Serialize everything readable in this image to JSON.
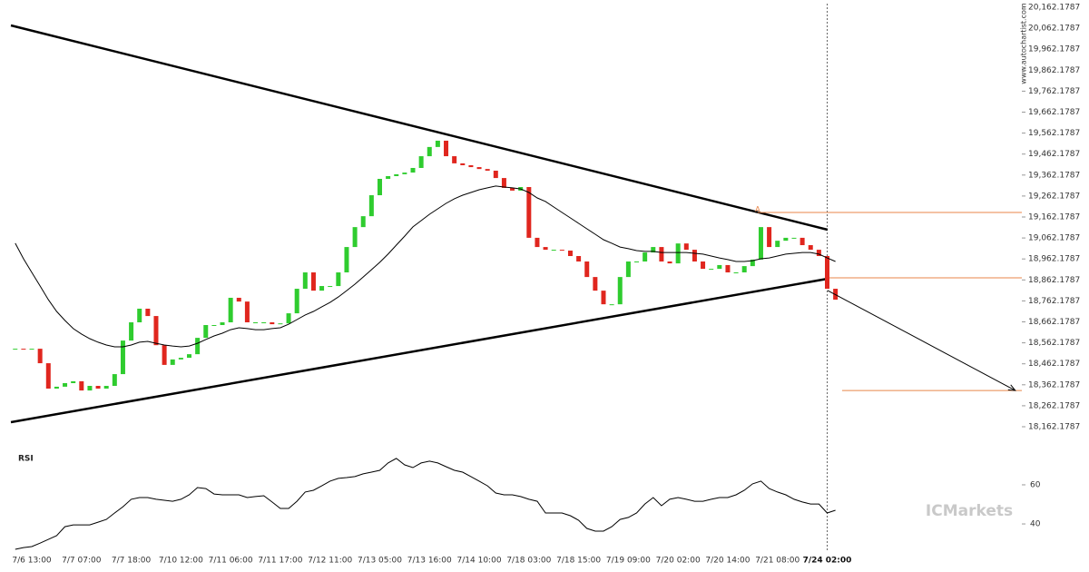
{
  "chart_data": {
    "type": "candlestick",
    "categories": [
      null,
      null,
      "7/6 13:00",
      null,
      null,
      null,
      null,
      null,
      "7/7 07:00",
      null,
      null,
      null,
      null,
      null,
      "7/7 18:00",
      null,
      null,
      null,
      null,
      null,
      "7/10 12:00",
      null,
      null,
      null,
      null,
      null,
      "7/11 06:00",
      null,
      null,
      null,
      null,
      null,
      "7/11 17:00",
      null,
      null,
      null,
      null,
      null,
      "7/12 11:00",
      null,
      null,
      null,
      null,
      null,
      "7/13 05:00",
      null,
      null,
      null,
      null,
      null,
      "7/13 16:00",
      null,
      null,
      null,
      null,
      null,
      "7/14 10:00",
      null,
      null,
      null,
      null,
      null,
      "7/18 03:00",
      null,
      null,
      null,
      null,
      null,
      "7/18 15:00",
      null,
      null,
      null,
      null,
      null,
      "7/19 09:00",
      null,
      null,
      null,
      null,
      null,
      "7/20 02:00",
      null,
      null,
      null,
      null,
      null,
      "7/20 14:00",
      null,
      null,
      null,
      null,
      null,
      "7/21 08:00",
      null,
      null,
      null,
      null,
      null,
      "7/24 02:00",
      null
    ],
    "highlight": "7/24 02:00",
    "values": [
      18534,
      18530,
      18534,
      18465,
      18344,
      18353,
      18370,
      18379,
      18335,
      18357,
      18344,
      18357,
      18413,
      18573,
      18660,
      18725,
      18690,
      18551,
      18457,
      18483,
      18491,
      18508,
      18586,
      18647,
      18647,
      18660,
      18777,
      18759,
      18660,
      18660,
      18660,
      18651,
      18655,
      18703,
      18820,
      18898,
      18811,
      18833,
      18833,
      18898,
      19019,
      19114,
      19166,
      19266,
      19344,
      19357,
      19366,
      19374,
      19396,
      19452,
      19496,
      19526,
      19452,
      19418,
      19409,
      19400,
      19391,
      19383,
      19348,
      19301,
      19288,
      19305,
      19063,
      19019,
      19006,
      19006,
      19002,
      18976,
      18950,
      18876,
      18811,
      18746,
      18746,
      18876,
      18950,
      18950,
      18993,
      19019,
      18950,
      18941,
      19036,
      19006,
      18950,
      18915,
      18915,
      18933,
      18898,
      18898,
      18928,
      18959,
      19114,
      19019,
      19049,
      19063,
      19063,
      19028,
      19006,
      18976,
      18820,
      18768
    ],
    "color_up": "#2fcc2f",
    "color_down": "#e0261e",
    "moving_average": {
      "color": "#000000",
      "values": [
        19037,
        18963,
        18898,
        18833,
        18768,
        18712,
        18669,
        18630,
        18604,
        18582,
        18565,
        18552,
        18543,
        18543,
        18552,
        18565,
        18569,
        18560,
        18552,
        18547,
        18543,
        18547,
        18560,
        18578,
        18595,
        18608,
        18625,
        18634,
        18630,
        18625,
        18625,
        18630,
        18634,
        18651,
        18673,
        18695,
        18712,
        18734,
        18755,
        18781,
        18811,
        18842,
        18876,
        18911,
        18946,
        18985,
        19028,
        19071,
        19115,
        19145,
        19175,
        19201,
        19227,
        19249,
        19266,
        19279,
        19292,
        19301,
        19310,
        19305,
        19301,
        19296,
        19279,
        19253,
        19236,
        19210,
        19184,
        19158,
        19132,
        19106,
        19080,
        19054,
        19037,
        19019,
        19011,
        19002,
        18998,
        18998,
        18993,
        18993,
        18993,
        18993,
        18989,
        18985,
        18976,
        18967,
        18959,
        18950,
        18950,
        18954,
        18963,
        18967,
        18976,
        18985,
        18989,
        18993,
        18993,
        18985,
        18967,
        18950
      ]
    },
    "ylim": [
      18075.6,
      20196.8
    ],
    "yticks": [
      {
        "value": 18162.1787,
        "label": "18,162.1787"
      },
      {
        "value": 18262.1787,
        "label": "18,262.1787"
      },
      {
        "value": 18362.1787,
        "label": "18,362.1787"
      },
      {
        "value": 18462.1787,
        "label": "18,462.1787"
      },
      {
        "value": 18562.1787,
        "label": "18,562.1787"
      },
      {
        "value": 18662.1787,
        "label": "18,662.1787"
      },
      {
        "value": 18762.1787,
        "label": "18,762.1787"
      },
      {
        "value": 18862.1787,
        "label": "18,862.1787"
      },
      {
        "value": 18962.1787,
        "label": "18,962.1787"
      },
      {
        "value": 19062.1787,
        "label": "19,062.1787"
      },
      {
        "value": 19162.1787,
        "label": "19,162.1787"
      },
      {
        "value": 19262.1787,
        "label": "19,262.1787"
      },
      {
        "value": 19362.1787,
        "label": "19,362.1787"
      },
      {
        "value": 19462.1787,
        "label": "19,462.1787"
      },
      {
        "value": 19562.1787,
        "label": "19,562.1787"
      },
      {
        "value": 19662.1787,
        "label": "19,662.1787"
      },
      {
        "value": 19762.1787,
        "label": "19,762.1787"
      },
      {
        "value": 19862.1787,
        "label": "19,862.1787"
      },
      {
        "value": 19962.1787,
        "label": "19,962.1787"
      },
      {
        "value": 20062.1787,
        "label": "20,062.1787"
      },
      {
        "value": 20162.1787,
        "label": "20,162.1787"
      }
    ],
    "trendlines": [
      {
        "x": [
          -0.52,
          98.05
        ],
        "y": [
          20075.6,
          19101.6
        ]
      },
      {
        "x": [
          -0.52,
          98.05
        ],
        "y": [
          18183.8,
          18867.7
        ]
      }
    ],
    "arrow": {
      "x": [
        98.05,
        120.7
      ],
      "y": [
        18812,
        18335
      ]
    },
    "levels": [
      {
        "x_start": 89.6,
        "value": 19183.8
      },
      {
        "x_start": 98.05,
        "value": 18872
      },
      {
        "x_start": 99.8,
        "value": 18335
      }
    ],
    "level_color": "#e8864a",
    "point_label": {
      "text": "A",
      "x": 89.6,
      "y": 19200
    },
    "rsi": {
      "label": "RSI",
      "color": "#000000",
      "ylim": [
        24.7,
        78.1
      ],
      "yticks": [
        40,
        60
      ],
      "values": [
        27.0,
        27.9,
        28.4,
        30.2,
        32.1,
        34.0,
        38.6,
        39.5,
        39.5,
        39.5,
        40.9,
        42.3,
        45.6,
        48.8,
        52.6,
        53.5,
        53.5,
        52.6,
        52.1,
        51.6,
        52.6,
        54.9,
        58.6,
        58.1,
        55.3,
        54.9,
        54.9,
        54.9,
        53.5,
        54.0,
        54.4,
        51.2,
        47.9,
        47.9,
        51.6,
        56.3,
        57.2,
        59.5,
        61.9,
        63.3,
        63.7,
        64.2,
        65.6,
        66.5,
        67.4,
        71.2,
        73.5,
        70.2,
        68.8,
        71.2,
        72.1,
        71.2,
        69.3,
        67.4,
        66.5,
        64.2,
        61.9,
        59.5,
        55.8,
        54.9,
        54.9,
        54.0,
        52.6,
        51.6,
        45.6,
        45.6,
        45.6,
        44.2,
        41.9,
        37.7,
        36.3,
        36.3,
        38.6,
        42.3,
        43.3,
        45.6,
        50.2,
        53.5,
        49.3,
        52.6,
        53.5,
        52.6,
        51.6,
        51.6,
        52.6,
        53.5,
        53.5,
        54.9,
        57.2,
        60.5,
        61.9,
        58.1,
        56.3,
        54.9,
        52.6,
        51.2,
        50.2,
        50.2,
        45.6,
        47.0
      ]
    },
    "watermark": "ICMarkets",
    "site": "www.autochartist.com"
  }
}
